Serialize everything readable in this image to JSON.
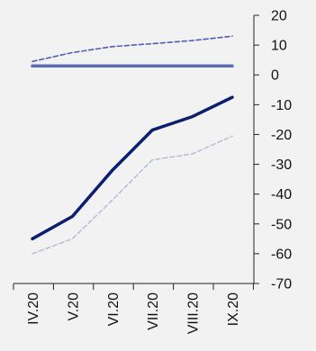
{
  "chart_data": {
    "type": "line",
    "categories": [
      "IV.20",
      "V.20",
      "VI.20",
      "VII.20",
      "VIII.20",
      "IX.20"
    ],
    "y_axis": {
      "position": "right",
      "ylim": [
        -70,
        20
      ],
      "ticks": [
        20,
        10,
        0,
        -10,
        -20,
        -30,
        -40,
        -50,
        -60,
        -70
      ],
      "tick_labels": [
        "20",
        "10",
        "0",
        "-10",
        "-20",
        "-30",
        "-40",
        "-50",
        "-60",
        "-70"
      ]
    },
    "grid": false,
    "legend": "none",
    "series": [
      {
        "values": [
          -55,
          -47.5,
          -32,
          -18.5,
          -14,
          -7.5
        ],
        "color": "#0b1f6e",
        "style": "solid",
        "width": 3.5
      },
      {
        "values": [
          3,
          3,
          3,
          3,
          3,
          3
        ],
        "color": "#5b6bb8",
        "style": "solid",
        "width": 3.5
      },
      {
        "values": [
          4.5,
          7.5,
          9.5,
          10.5,
          11.5,
          13
        ],
        "color": "#5060b0",
        "style": "dashed",
        "width": 1.6
      },
      {
        "values": [
          -60,
          -55,
          -42,
          -28.5,
          -26.5,
          -20.5
        ],
        "color": "#b3b8d6",
        "style": "dashed",
        "width": 1.4
      }
    ]
  }
}
